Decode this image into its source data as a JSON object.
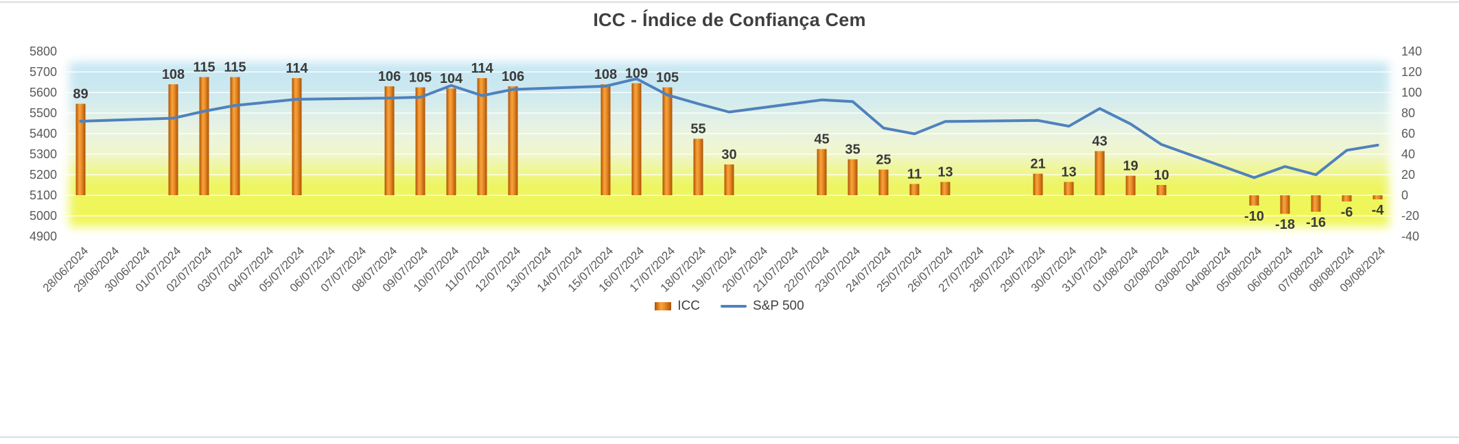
{
  "chart_data": {
    "type": "combo",
    "title": "ICC - Índice de Confiança Cem",
    "categories": [
      "28/06/2024",
      "29/06/2024",
      "30/06/2024",
      "01/07/2024",
      "02/07/2024",
      "03/07/2024",
      "04/07/2024",
      "05/07/2024",
      "06/07/2024",
      "07/07/2024",
      "08/07/2024",
      "09/07/2024",
      "10/07/2024",
      "11/07/2024",
      "12/07/2024",
      "13/07/2024",
      "14/07/2024",
      "15/07/2024",
      "16/07/2024",
      "17/07/2024",
      "18/07/2024",
      "19/07/2024",
      "20/07/2024",
      "21/07/2024",
      "22/07/2024",
      "23/07/2024",
      "24/07/2024",
      "25/07/2024",
      "26/07/2024",
      "27/07/2024",
      "28/07/2024",
      "29/07/2024",
      "30/07/2024",
      "31/07/2024",
      "01/08/2024",
      "02/08/2024",
      "03/08/2024",
      "04/08/2024",
      "05/08/2024",
      "06/08/2024",
      "07/08/2024",
      "08/08/2024",
      "09/08/2024"
    ],
    "series": [
      {
        "name": "ICC",
        "type": "bar",
        "axis": "right",
        "values": [
          89,
          null,
          null,
          108,
          115,
          115,
          null,
          114,
          null,
          null,
          106,
          105,
          104,
          114,
          106,
          null,
          null,
          108,
          109,
          105,
          55,
          30,
          null,
          null,
          45,
          35,
          25,
          11,
          13,
          null,
          null,
          21,
          13,
          43,
          19,
          10,
          null,
          null,
          -10,
          -18,
          -16,
          -6,
          -4
        ]
      },
      {
        "name": "S&P 500",
        "type": "line",
        "axis": "left",
        "values": [
          5460,
          null,
          null,
          5475,
          5509,
          5537,
          null,
          5567,
          null,
          null,
          5573,
          5577,
          5634,
          5585,
          5615,
          null,
          null,
          5631,
          5667,
          5588,
          5545,
          5505,
          null,
          null,
          5564,
          5556,
          5427,
          5399,
          5459,
          null,
          null,
          5464,
          5436,
          5522,
          5447,
          5347,
          null,
          null,
          5186,
          5240,
          5200,
          5319,
          5344
        ]
      }
    ],
    "left_axis": {
      "min": 4900,
      "max": 5800,
      "step": 100,
      "ticks": [
        "5800",
        "5700",
        "5600",
        "5500",
        "5400",
        "5300",
        "5200",
        "5100",
        "5000",
        "4900"
      ]
    },
    "right_axis": {
      "min": -40,
      "max": 140,
      "step": 20,
      "ticks": [
        "140",
        "120",
        "100",
        "80",
        "60",
        "40",
        "20",
        "0",
        "-20",
        "-40"
      ]
    },
    "legend": [
      {
        "label": "ICC",
        "swatch": "bar"
      },
      {
        "label": "S&P 500",
        "swatch": "line"
      }
    ],
    "legend_position": "bottom",
    "grid": true,
    "style": {
      "line_color": "#4f81bd",
      "grid_color": "#ffffff",
      "axis_text_color": "#595959",
      "label_color": "#3a3a3a",
      "title_color": "#3f3f3f",
      "bar_gradient": [
        [
          "0",
          "#aa4f07"
        ],
        [
          "0.18",
          "#d97b17"
        ],
        [
          "0.38",
          "#f7a43e"
        ],
        [
          "0.60",
          "#ea8c28"
        ],
        [
          "1",
          "#ab5206"
        ]
      ],
      "plot_bg_gradient": [
        [
          "0",
          "#c3e5f2"
        ],
        [
          "0.18",
          "#cde9f0"
        ],
        [
          "0.38",
          "#e6f2e4"
        ],
        [
          "0.55",
          "#f0f6cf"
        ],
        [
          "0.75",
          "#eef55e"
        ],
        [
          "1",
          "#f0f656"
        ]
      ]
    }
  }
}
